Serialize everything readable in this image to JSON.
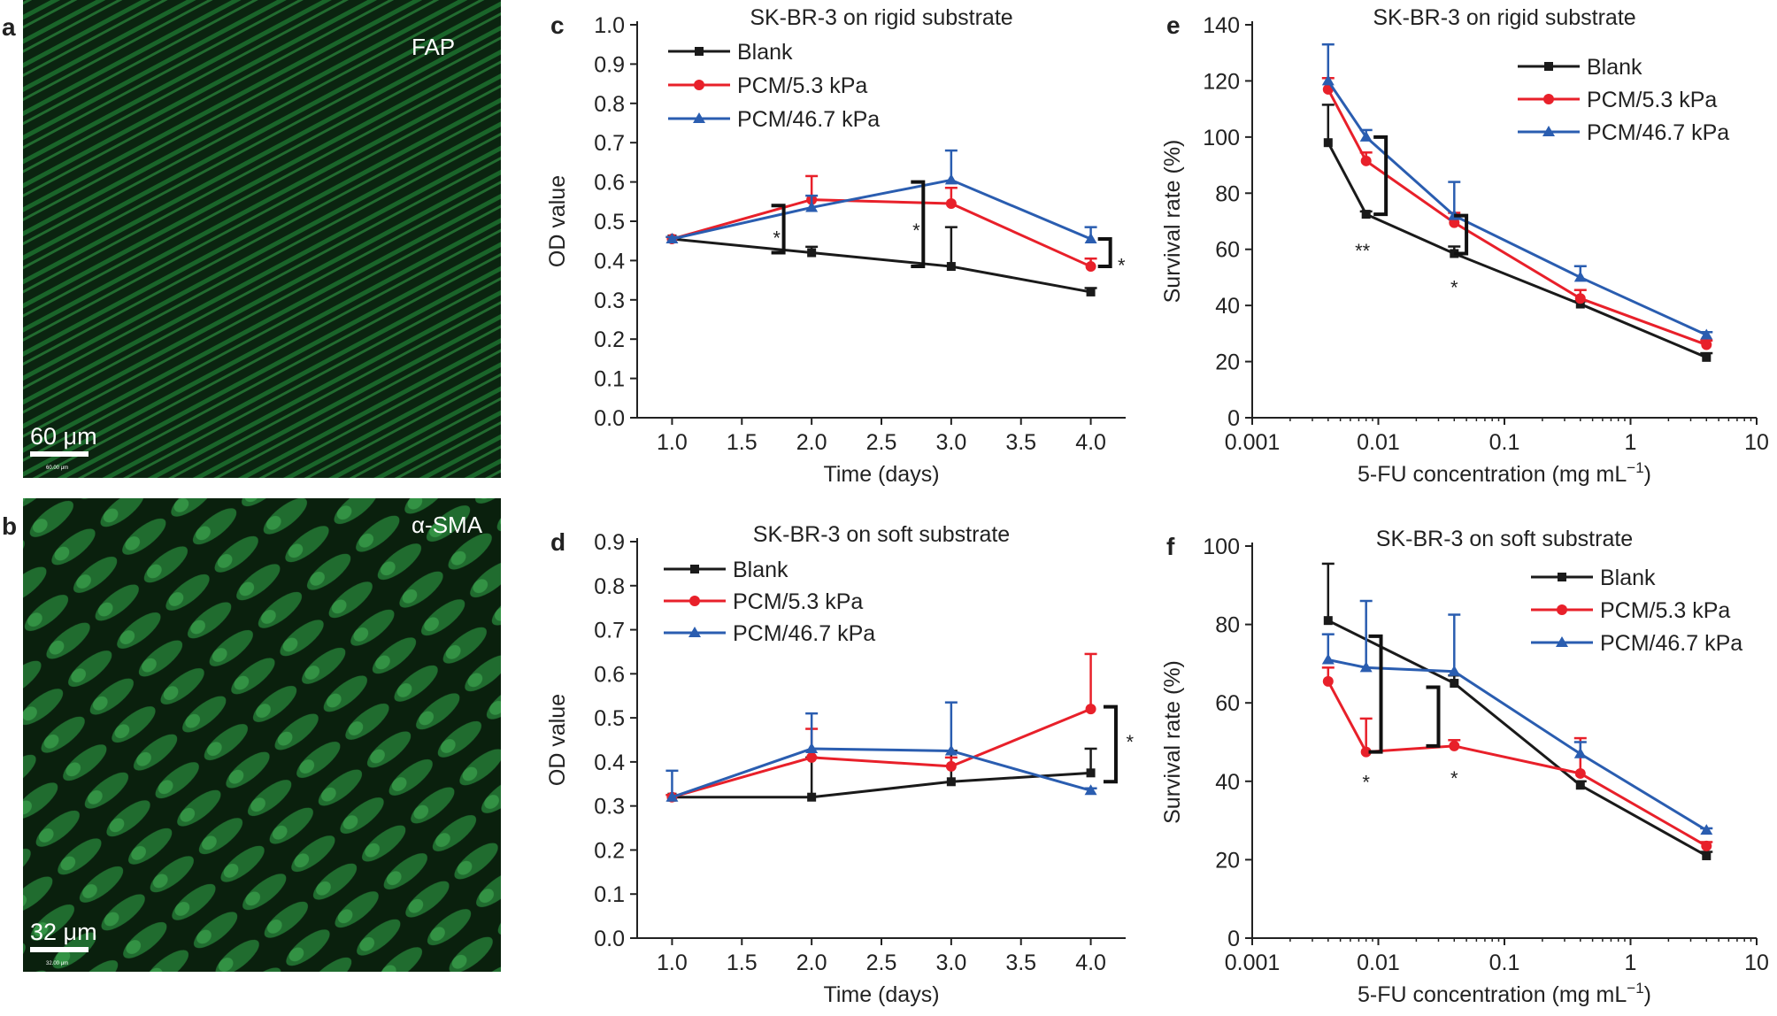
{
  "panels": {
    "a": {
      "letter": "a",
      "label": "FAP",
      "scalebar": "60 μm",
      "tiny_label": "60.00 μm"
    },
    "b": {
      "letter": "b",
      "label": "α-SMA",
      "scalebar": "32 μm",
      "tiny_label": "32.00 μm"
    }
  },
  "colors": {
    "Blank": "#1a1a1a",
    "PCM/5.3 kPa": "#e8202a",
    "PCM/46.7 kPa": "#2a5db0",
    "micrograph": "#1f9e3c"
  },
  "chart_data": [
    {
      "id": "c",
      "letter": "c",
      "type": "line",
      "title": "SK-BR-3 on rigid substrate",
      "xlabel": "Time (days)",
      "ylabel": "OD value",
      "xlim": [
        0.75,
        4.25
      ],
      "ylim": [
        0,
        1.0
      ],
      "xticks": [
        1.0,
        1.5,
        2.0,
        2.5,
        3.0,
        3.5,
        4.0
      ],
      "xtick_labels": [
        "1.0",
        "1.5",
        "2.0",
        "2.5",
        "3.0",
        "3.5",
        "4.0"
      ],
      "yticks": [
        0,
        0.1,
        0.2,
        0.3,
        0.4,
        0.5,
        0.6,
        0.7,
        0.8,
        0.9,
        1.0
      ],
      "ytick_labels": [
        "0.0",
        "0.1",
        "0.2",
        "0.3",
        "0.4",
        "0.5",
        "0.6",
        "0.7",
        "0.8",
        "0.9",
        "1.0"
      ],
      "legend": "top-left",
      "series": [
        {
          "name": "Blank",
          "marker": "square",
          "x": [
            1,
            2,
            3,
            4
          ],
          "y": [
            0.455,
            0.42,
            0.385,
            0.32
          ],
          "err": [
            0.005,
            0.015,
            0.1,
            0.01
          ]
        },
        {
          "name": "PCM/5.3 kPa",
          "marker": "circle",
          "x": [
            1,
            2,
            3,
            4
          ],
          "y": [
            0.455,
            0.555,
            0.545,
            0.385
          ],
          "err": [
            0.005,
            0.06,
            0.04,
            0.02
          ]
        },
        {
          "name": "PCM/46.7 kPa",
          "marker": "triangle",
          "x": [
            1,
            2,
            3,
            4
          ],
          "y": [
            0.455,
            0.535,
            0.605,
            0.455
          ],
          "err": [
            0.005,
            0.03,
            0.075,
            0.03
          ]
        }
      ],
      "annotations": [
        {
          "text": "*",
          "x": 1.75,
          "y": 0.44
        },
        {
          "text": "*",
          "x": 2.75,
          "y": 0.46
        },
        {
          "text": "*",
          "x": 4.22,
          "y": 0.37
        }
      ],
      "brackets": [
        {
          "x": 1.8,
          "y1": 0.42,
          "y2": 0.54
        },
        {
          "x": 2.8,
          "y1": 0.385,
          "y2": 0.6
        },
        {
          "x": 4.14,
          "y1": 0.385,
          "y2": 0.455
        }
      ]
    },
    {
      "id": "d",
      "letter": "d",
      "type": "line",
      "title": "SK-BR-3 on soft substrate",
      "xlabel": "Time (days)",
      "ylabel": "OD value",
      "xlim": [
        0.75,
        4.25
      ],
      "ylim": [
        0,
        0.9
      ],
      "xticks": [
        1.0,
        1.5,
        2.0,
        2.5,
        3.0,
        3.5,
        4.0
      ],
      "xtick_labels": [
        "1.0",
        "1.5",
        "2.0",
        "2.5",
        "3.0",
        "3.5",
        "4.0"
      ],
      "yticks": [
        0,
        0.1,
        0.2,
        0.3,
        0.4,
        0.5,
        0.6,
        0.7,
        0.8,
        0.9
      ],
      "ytick_labels": [
        "0.0",
        "0.1",
        "0.2",
        "0.3",
        "0.4",
        "0.5",
        "0.6",
        "0.7",
        "0.8",
        "0.9"
      ],
      "legend": "top-left",
      "series": [
        {
          "name": "Blank",
          "marker": "square",
          "x": [
            1,
            2,
            3,
            4
          ],
          "y": [
            0.32,
            0.32,
            0.355,
            0.375
          ],
          "err": [
            0.005,
            0.09,
            0.07,
            0.055
          ]
        },
        {
          "name": "PCM/5.3 kPa",
          "marker": "circle",
          "x": [
            1,
            2,
            3,
            4
          ],
          "y": [
            0.32,
            0.41,
            0.39,
            0.52
          ],
          "err": [
            0.005,
            0.065,
            0.02,
            0.125
          ]
        },
        {
          "name": "PCM/46.7 kPa",
          "marker": "triangle",
          "x": [
            1,
            2,
            3,
            4
          ],
          "y": [
            0.32,
            0.43,
            0.425,
            0.335
          ],
          "err": [
            0.06,
            0.08,
            0.11,
            0.005
          ]
        }
      ],
      "annotations": [
        {
          "text": "*",
          "x": 4.28,
          "y": 0.43
        }
      ],
      "brackets": [
        {
          "x": 4.18,
          "y1": 0.355,
          "y2": 0.525
        }
      ]
    },
    {
      "id": "e",
      "letter": "e",
      "type": "line",
      "xscale": "log",
      "title": "SK-BR-3 on rigid substrate",
      "xlabel": "5-FU concentration (mg mL",
      "xlabel_sup": "−1",
      "xlabel_end": ")",
      "ylabel": "Survival rate (%)",
      "xlim": [
        0.001,
        10
      ],
      "ylim": [
        0,
        140
      ],
      "xticks": [
        0.001,
        0.01,
        0.1,
        1,
        10
      ],
      "xtick_labels": [
        "0.001",
        "0.01",
        "0.1",
        "1",
        "10"
      ],
      "yticks": [
        0,
        20,
        40,
        60,
        80,
        100,
        120,
        140
      ],
      "ytick_labels": [
        "0",
        "20",
        "40",
        "60",
        "80",
        "100",
        "120",
        "140"
      ],
      "legend": "top-right",
      "series": [
        {
          "name": "Blank",
          "marker": "square",
          "x": [
            0.004,
            0.008,
            0.04,
            0.4,
            4
          ],
          "y": [
            98,
            72.5,
            58.5,
            40.5,
            21.5
          ],
          "err": [
            13.5,
            1,
            2.5,
            1,
            1.5
          ]
        },
        {
          "name": "PCM/5.3 kPa",
          "marker": "circle",
          "x": [
            0.004,
            0.008,
            0.04,
            0.4,
            4
          ],
          "y": [
            117,
            91.5,
            69.5,
            42.5,
            26
          ],
          "err": [
            4,
            3,
            3.5,
            3,
            1.5
          ]
        },
        {
          "name": "PCM/46.7 kPa",
          "marker": "triangle",
          "x": [
            0.004,
            0.008,
            0.04,
            0.4,
            4
          ],
          "y": [
            120,
            100,
            72,
            50,
            29.5
          ],
          "err": [
            13,
            2.5,
            12,
            4,
            1
          ]
        }
      ],
      "annotations": [
        {
          "text": "**",
          "x": 0.0075,
          "y": 57
        },
        {
          "text": "*",
          "x": 0.04,
          "y": 44
        }
      ],
      "brackets": [
        {
          "x": 0.0115,
          "y1": 72.5,
          "y2": 100
        },
        {
          "x": 0.05,
          "y1": 58.5,
          "y2": 72
        }
      ]
    },
    {
      "id": "f",
      "letter": "f",
      "type": "line",
      "xscale": "log",
      "title": "SK-BR-3 on soft substrate",
      "xlabel": "5-FU concentration (mg mL",
      "xlabel_sup": "−1",
      "xlabel_end": ")",
      "ylabel": "Survival rate (%)",
      "xlim": [
        0.001,
        10
      ],
      "ylim": [
        0,
        100
      ],
      "xticks": [
        0.001,
        0.01,
        0.1,
        1,
        10
      ],
      "xtick_labels": [
        "0.001",
        "0.01",
        "0.1",
        "1",
        "10"
      ],
      "yticks": [
        0,
        20,
        40,
        60,
        80,
        100
      ],
      "ytick_labels": [
        "0",
        "20",
        "40",
        "60",
        "80",
        "100"
      ],
      "legend": "top-right",
      "series": [
        {
          "name": "Blank",
          "marker": "square",
          "x": [
            0.004,
            0.04,
            0.4,
            4
          ],
          "y": [
            81,
            65,
            39,
            21
          ],
          "err": [
            14.5,
            2,
            1,
            1
          ]
        },
        {
          "name": "PCM/5.3 kPa",
          "marker": "circle",
          "x": [
            0.004,
            0.008,
            0.04,
            0.4,
            4
          ],
          "y": [
            65.5,
            47.5,
            49,
            42,
            23.5
          ],
          "err": [
            3.5,
            8.5,
            1.5,
            9,
            1
          ]
        },
        {
          "name": "PCM/46.7 kPa",
          "marker": "triangle",
          "x": [
            0.004,
            0.008,
            0.04,
            0.4,
            4
          ],
          "y": [
            71,
            69,
            68,
            47,
            27.5
          ],
          "err": [
            6.5,
            17,
            14.5,
            3,
            0.5
          ]
        }
      ],
      "annotations": [
        {
          "text": "*",
          "x": 0.008,
          "y": 38
        },
        {
          "text": "*",
          "x": 0.04,
          "y": 39
        }
      ],
      "brackets": [
        {
          "x": 0.0105,
          "y1": 47.5,
          "y2": 77
        },
        {
          "x": 0.03,
          "y1": 49,
          "y2": 64
        }
      ]
    }
  ]
}
